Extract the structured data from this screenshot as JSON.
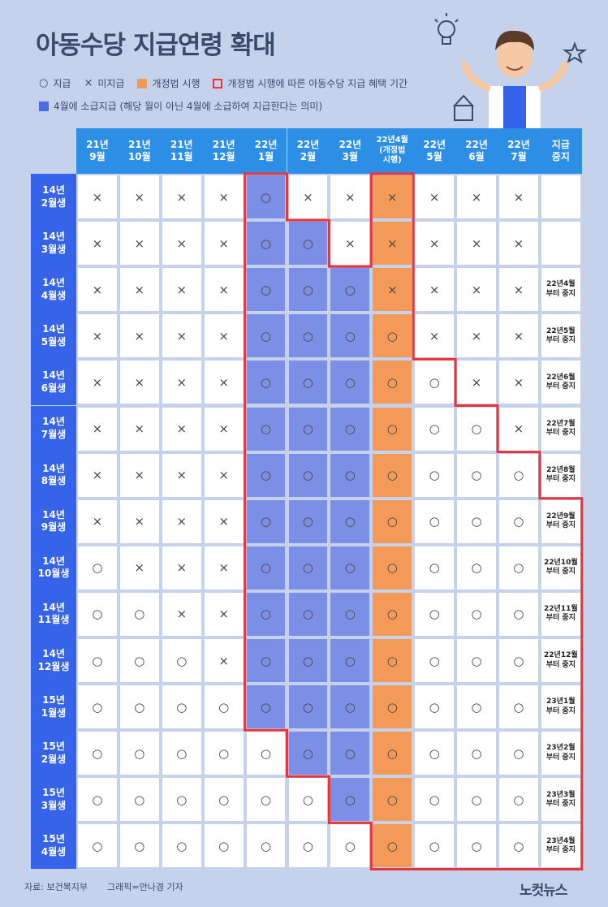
{
  "title": "아동수당 지급연령 확대",
  "legend": {
    "paid_symbol": "○",
    "paid_label": "지급",
    "unpaid_symbol": "×",
    "unpaid_label": "미지급",
    "law_label": "개정법 시행",
    "benefit_label": "개정법 시행에 따른 아동수당 지급 혜택 기간",
    "april_label": "4월에 소급지급 (해당 월이 아닌 4월에 소급하여 지급한다는 의미)"
  },
  "colors": {
    "header_blue": "#2d8ee6",
    "row_blue": "#3563e9",
    "april_blue": "#7b8fe6",
    "law_orange": "#f39a58",
    "benefit_red": "#e8343c"
  },
  "columns": [
    "21년\n9월",
    "21년\n10월",
    "21년\n11월",
    "21년\n12월",
    "22년\n1월",
    "22년\n2월",
    "22년\n3월",
    "22년4월\n(개정법\n시행)",
    "22년\n5월",
    "22년\n6월",
    "22년\n7월",
    "지급\n중지"
  ],
  "rows": [
    {
      "label": "14년\n2월생",
      "cells": [
        "×",
        "×",
        "×",
        "×",
        "○",
        "×",
        "×",
        "×",
        "×",
        "×",
        "×"
      ],
      "stop": ""
    },
    {
      "label": "14년\n3월생",
      "cells": [
        "×",
        "×",
        "×",
        "×",
        "○",
        "○",
        "×",
        "×",
        "×",
        "×",
        "×"
      ],
      "stop": ""
    },
    {
      "label": "14년\n4월생",
      "cells": [
        "×",
        "×",
        "×",
        "×",
        "○",
        "○",
        "○",
        "×",
        "×",
        "×",
        "×"
      ],
      "stop": "22년4월\n부터 중지"
    },
    {
      "label": "14년\n5월생",
      "cells": [
        "×",
        "×",
        "×",
        "×",
        "○",
        "○",
        "○",
        "○",
        "×",
        "×",
        "×"
      ],
      "stop": "22년5월\n부터 중지"
    },
    {
      "label": "14년\n6월생",
      "cells": [
        "×",
        "×",
        "×",
        "×",
        "○",
        "○",
        "○",
        "○",
        "○",
        "×",
        "×"
      ],
      "stop": "22년6월\n부터 중지"
    },
    {
      "label": "14년\n7월생",
      "cells": [
        "×",
        "×",
        "×",
        "×",
        "○",
        "○",
        "○",
        "○",
        "○",
        "○",
        "×"
      ],
      "stop": "22년7월\n부터 중지"
    },
    {
      "label": "14년\n8월생",
      "cells": [
        "×",
        "×",
        "×",
        "×",
        "○",
        "○",
        "○",
        "○",
        "○",
        "○",
        "○"
      ],
      "stop": "22년8월\n부터 중지"
    },
    {
      "label": "14년\n9월생",
      "cells": [
        "×",
        "×",
        "×",
        "×",
        "○",
        "○",
        "○",
        "○",
        "○",
        "○",
        "○"
      ],
      "stop": "22년9월\n부터 중지"
    },
    {
      "label": "14년\n10월생",
      "cells": [
        "○",
        "×",
        "×",
        "×",
        "○",
        "○",
        "○",
        "○",
        "○",
        "○",
        "○"
      ],
      "stop": "22년10월\n부터 중지"
    },
    {
      "label": "14년\n11월생",
      "cells": [
        "○",
        "○",
        "×",
        "×",
        "○",
        "○",
        "○",
        "○",
        "○",
        "○",
        "○"
      ],
      "stop": "22년11월\n부터 중지"
    },
    {
      "label": "14년\n12월생",
      "cells": [
        "○",
        "○",
        "○",
        "×",
        "○",
        "○",
        "○",
        "○",
        "○",
        "○",
        "○"
      ],
      "stop": "22년12월\n부터 중지"
    },
    {
      "label": "15년\n1월생",
      "cells": [
        "○",
        "○",
        "○",
        "○",
        "○",
        "○",
        "○",
        "○",
        "○",
        "○",
        "○"
      ],
      "stop": "23년1월\n부터 중지"
    },
    {
      "label": "15년\n2월생",
      "cells": [
        "○",
        "○",
        "○",
        "○",
        "○",
        "○",
        "○",
        "○",
        "○",
        "○",
        "○"
      ],
      "stop": "23년2월\n부터 중지"
    },
    {
      "label": "15년\n3월생",
      "cells": [
        "○",
        "○",
        "○",
        "○",
        "○",
        "○",
        "○",
        "○",
        "○",
        "○",
        "○"
      ],
      "stop": "23년3월\n부터 중지"
    },
    {
      "label": "15년\n4월생",
      "cells": [
        "○",
        "○",
        "○",
        "○",
        "○",
        "○",
        "○",
        "○",
        "○",
        "○",
        "○"
      ],
      "stop": "23년4월\n부터 중지"
    }
  ],
  "footer": {
    "source": "자료: 보건복지부",
    "graphic": "그래픽=안나경 기자",
    "brand": "노컷뉴스"
  }
}
